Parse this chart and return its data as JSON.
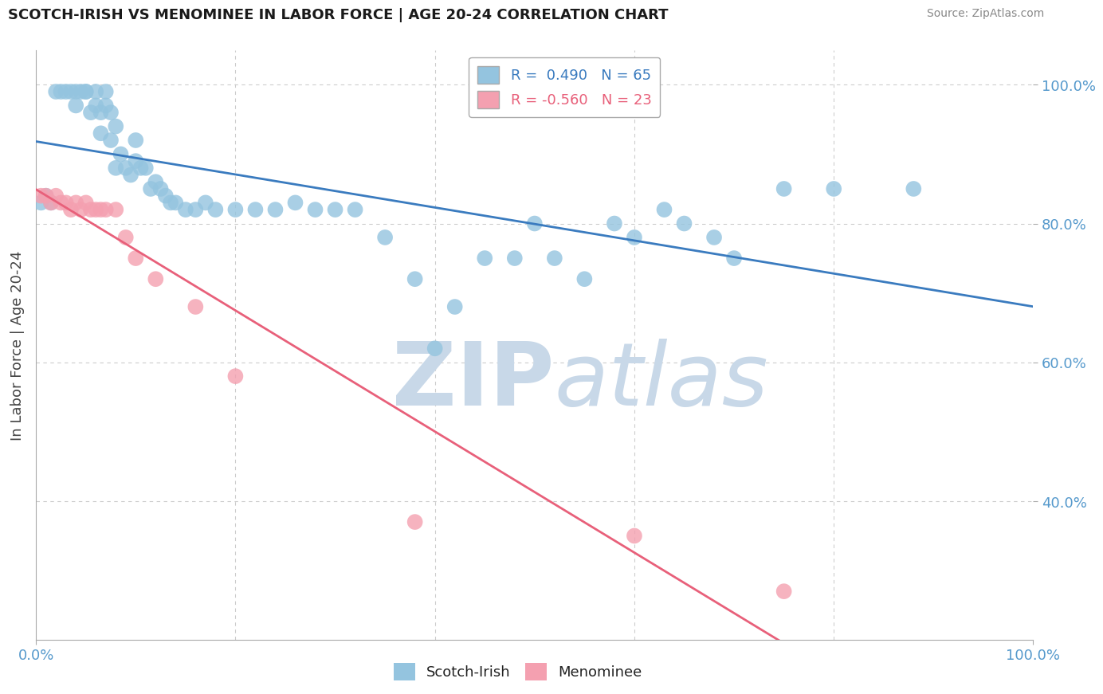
{
  "title": "SCOTCH-IRISH VS MENOMINEE IN LABOR FORCE | AGE 20-24 CORRELATION CHART",
  "source": "Source: ZipAtlas.com",
  "ylabel": "In Labor Force | Age 20-24",
  "xlim": [
    0.0,
    1.0
  ],
  "ylim": [
    0.2,
    1.05
  ],
  "yticks": [
    0.4,
    0.6,
    0.8,
    1.0
  ],
  "ytick_labels": [
    "40.0%",
    "60.0%",
    "80.0%",
    "100.0%"
  ],
  "xtick_labels": [
    "0.0%",
    "100.0%"
  ],
  "scotch_irish_R": 0.49,
  "scotch_irish_N": 65,
  "menominee_R": -0.56,
  "menominee_N": 23,
  "scotch_irish_color": "#94c4df",
  "menominee_color": "#f4a0b0",
  "scotch_irish_line_color": "#3a7bbf",
  "menominee_line_color": "#e8607a",
  "background_color": "#ffffff",
  "grid_color": "#cccccc",
  "watermark_color": "#c8d8e8",
  "tick_color": "#5599cc",
  "scotch_irish_x": [
    0.005,
    0.01,
    0.015,
    0.02,
    0.025,
    0.03,
    0.035,
    0.04,
    0.04,
    0.045,
    0.05,
    0.05,
    0.055,
    0.06,
    0.06,
    0.065,
    0.065,
    0.07,
    0.07,
    0.075,
    0.075,
    0.08,
    0.08,
    0.085,
    0.09,
    0.095,
    0.1,
    0.1,
    0.105,
    0.11,
    0.115,
    0.12,
    0.125,
    0.13,
    0.135,
    0.14,
    0.15,
    0.16,
    0.17,
    0.18,
    0.2,
    0.22,
    0.24,
    0.26,
    0.28,
    0.3,
    0.32,
    0.35,
    0.38,
    0.4,
    0.42,
    0.45,
    0.48,
    0.5,
    0.52,
    0.55,
    0.58,
    0.6,
    0.63,
    0.65,
    0.68,
    0.7,
    0.75,
    0.8,
    0.88
  ],
  "scotch_irish_y": [
    0.83,
    0.84,
    0.83,
    0.99,
    0.99,
    0.99,
    0.99,
    0.99,
    0.97,
    0.99,
    0.99,
    0.99,
    0.96,
    0.99,
    0.97,
    0.96,
    0.93,
    0.99,
    0.97,
    0.92,
    0.96,
    0.88,
    0.94,
    0.9,
    0.88,
    0.87,
    0.92,
    0.89,
    0.88,
    0.88,
    0.85,
    0.86,
    0.85,
    0.84,
    0.83,
    0.83,
    0.82,
    0.82,
    0.83,
    0.82,
    0.82,
    0.82,
    0.82,
    0.83,
    0.82,
    0.82,
    0.82,
    0.78,
    0.72,
    0.62,
    0.68,
    0.75,
    0.75,
    0.8,
    0.75,
    0.72,
    0.8,
    0.78,
    0.82,
    0.8,
    0.78,
    0.75,
    0.85,
    0.85,
    0.85
  ],
  "menominee_x": [
    0.005,
    0.01,
    0.015,
    0.02,
    0.025,
    0.03,
    0.035,
    0.04,
    0.045,
    0.05,
    0.055,
    0.06,
    0.065,
    0.07,
    0.08,
    0.09,
    0.1,
    0.12,
    0.16,
    0.2,
    0.38,
    0.6,
    0.75
  ],
  "menominee_y": [
    0.84,
    0.84,
    0.83,
    0.84,
    0.83,
    0.83,
    0.82,
    0.83,
    0.82,
    0.83,
    0.82,
    0.82,
    0.82,
    0.82,
    0.82,
    0.78,
    0.75,
    0.72,
    0.68,
    0.58,
    0.37,
    0.35,
    0.27
  ]
}
